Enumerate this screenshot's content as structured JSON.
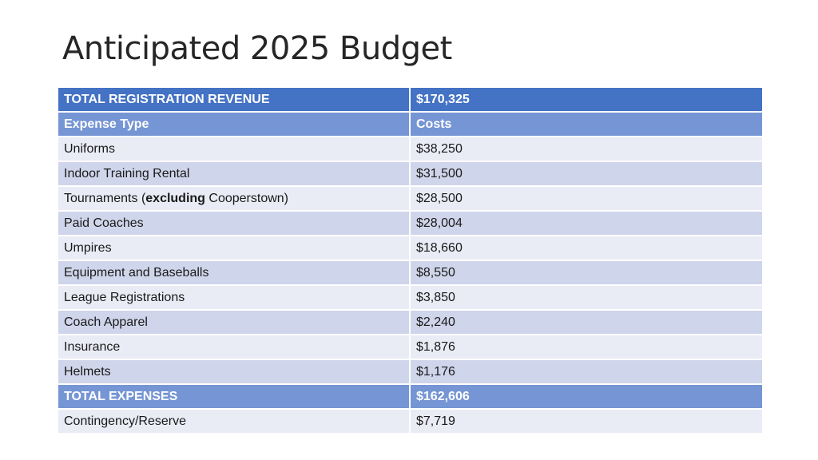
{
  "title": "Anticipated 2025 Budget",
  "revenue_row": {
    "label": "TOTAL REGISTRATION REVENUE",
    "value": "$170,325"
  },
  "header_row": {
    "label": "Expense Type",
    "value": "Costs"
  },
  "expenses": [
    {
      "label": "Uniforms",
      "value": "$38,250"
    },
    {
      "label": "Indoor Training Rental",
      "value": "$31,500"
    },
    {
      "label_prefix": "Tournaments (",
      "label_bold": "excluding",
      "label_suffix": " Cooperstown)",
      "value": "$28,500"
    },
    {
      "label": "Paid Coaches",
      "value": "$28,004"
    },
    {
      "label": "Umpires",
      "value": "$18,660"
    },
    {
      "label": "Equipment and Baseballs",
      "value": "$8,550"
    },
    {
      "label": "League Registrations",
      "value": "$3,850"
    },
    {
      "label": "Coach Apparel",
      "value": "$2,240"
    },
    {
      "label": "Insurance",
      "value": "$1,876"
    },
    {
      "label": "Helmets",
      "value": "$1,176"
    }
  ],
  "total_row": {
    "label": "TOTAL EXPENSES",
    "value": "$162,606"
  },
  "reserve_row": {
    "label": "Contingency/Reserve",
    "value": "$7,719"
  },
  "colors": {
    "header_dark": "#4472c4",
    "header_light": "#7595d4",
    "band_light": "#e9ebf5",
    "band_dark": "#cfd5ea"
  }
}
